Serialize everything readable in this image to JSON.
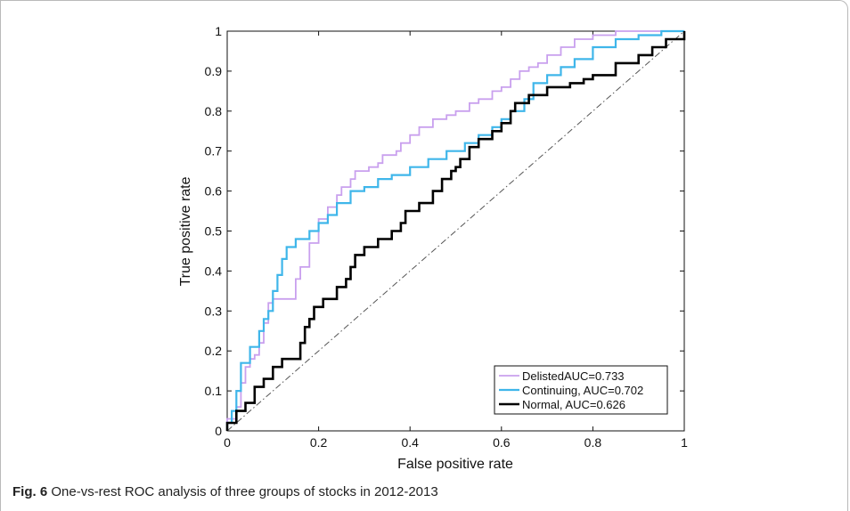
{
  "caption": {
    "label": "Fig. 6",
    "text": "One-vs-rest ROC analysis of three groups of stocks in 2012-2013"
  },
  "chart_data": {
    "type": "line",
    "xlabel": "False positive rate",
    "ylabel": "True positive rate",
    "xlim": [
      0,
      1
    ],
    "ylim": [
      0,
      1
    ],
    "xticks": [
      "0",
      "0.2",
      "0.4",
      "0.6",
      "0.8",
      "1"
    ],
    "yticks": [
      "0",
      "0.1",
      "0.2",
      "0.3",
      "0.4",
      "0.5",
      "0.6",
      "0.7",
      "0.8",
      "0.9",
      "1"
    ],
    "grid": false,
    "legend": "bottom-right",
    "diagonal": {
      "points": [
        [
          0,
          0
        ],
        [
          1,
          1
        ]
      ],
      "color": "#555555",
      "style": "dash-dot"
    },
    "series": [
      {
        "name": "DelistedAUC=0.733",
        "color": "#c9a0ee",
        "points": [
          [
            0,
            0
          ],
          [
            0,
            0.03
          ],
          [
            0.02,
            0.06
          ],
          [
            0.03,
            0.12
          ],
          [
            0.04,
            0.16
          ],
          [
            0.05,
            0.18
          ],
          [
            0.06,
            0.19
          ],
          [
            0.07,
            0.22
          ],
          [
            0.08,
            0.27
          ],
          [
            0.09,
            0.32
          ],
          [
            0.1,
            0.33
          ],
          [
            0.13,
            0.33
          ],
          [
            0.15,
            0.38
          ],
          [
            0.16,
            0.41
          ],
          [
            0.18,
            0.47
          ],
          [
            0.2,
            0.53
          ],
          [
            0.22,
            0.56
          ],
          [
            0.24,
            0.59
          ],
          [
            0.25,
            0.61
          ],
          [
            0.27,
            0.63
          ],
          [
            0.28,
            0.65
          ],
          [
            0.31,
            0.66
          ],
          [
            0.33,
            0.67
          ],
          [
            0.34,
            0.69
          ],
          [
            0.37,
            0.7
          ],
          [
            0.38,
            0.72
          ],
          [
            0.4,
            0.74
          ],
          [
            0.42,
            0.76
          ],
          [
            0.45,
            0.78
          ],
          [
            0.48,
            0.79
          ],
          [
            0.5,
            0.8
          ],
          [
            0.53,
            0.82
          ],
          [
            0.55,
            0.83
          ],
          [
            0.58,
            0.85
          ],
          [
            0.6,
            0.86
          ],
          [
            0.62,
            0.88
          ],
          [
            0.64,
            0.9
          ],
          [
            0.66,
            0.91
          ],
          [
            0.68,
            0.92
          ],
          [
            0.7,
            0.94
          ],
          [
            0.73,
            0.96
          ],
          [
            0.76,
            0.98
          ],
          [
            0.8,
            0.99
          ],
          [
            0.85,
            1.0
          ],
          [
            1,
            1
          ]
        ]
      },
      {
        "name": "Continuing, AUC=0.702",
        "color": "#3fb6ea",
        "points": [
          [
            0,
            0
          ],
          [
            0,
            0.02
          ],
          [
            0.01,
            0.05
          ],
          [
            0.02,
            0.1
          ],
          [
            0.03,
            0.17
          ],
          [
            0.05,
            0.21
          ],
          [
            0.07,
            0.25
          ],
          [
            0.08,
            0.28
          ],
          [
            0.09,
            0.3
          ],
          [
            0.1,
            0.35
          ],
          [
            0.11,
            0.39
          ],
          [
            0.12,
            0.43
          ],
          [
            0.13,
            0.46
          ],
          [
            0.15,
            0.48
          ],
          [
            0.18,
            0.5
          ],
          [
            0.2,
            0.52
          ],
          [
            0.22,
            0.54
          ],
          [
            0.24,
            0.57
          ],
          [
            0.27,
            0.6
          ],
          [
            0.3,
            0.61
          ],
          [
            0.33,
            0.63
          ],
          [
            0.36,
            0.64
          ],
          [
            0.4,
            0.66
          ],
          [
            0.44,
            0.68
          ],
          [
            0.48,
            0.7
          ],
          [
            0.52,
            0.72
          ],
          [
            0.55,
            0.74
          ],
          [
            0.58,
            0.76
          ],
          [
            0.6,
            0.78
          ],
          [
            0.62,
            0.8
          ],
          [
            0.65,
            0.83
          ],
          [
            0.67,
            0.87
          ],
          [
            0.7,
            0.89
          ],
          [
            0.73,
            0.91
          ],
          [
            0.76,
            0.93
          ],
          [
            0.8,
            0.96
          ],
          [
            0.85,
            0.98
          ],
          [
            0.9,
            0.99
          ],
          [
            0.95,
            1.0
          ],
          [
            1,
            1
          ]
        ]
      },
      {
        "name": "Normal, AUC=0.626",
        "color": "#000000",
        "points": [
          [
            0,
            0
          ],
          [
            0,
            0.02
          ],
          [
            0.02,
            0.05
          ],
          [
            0.04,
            0.07
          ],
          [
            0.06,
            0.11
          ],
          [
            0.08,
            0.13
          ],
          [
            0.1,
            0.16
          ],
          [
            0.12,
            0.18
          ],
          [
            0.14,
            0.18
          ],
          [
            0.16,
            0.22
          ],
          [
            0.17,
            0.26
          ],
          [
            0.18,
            0.28
          ],
          [
            0.19,
            0.31
          ],
          [
            0.21,
            0.33
          ],
          [
            0.24,
            0.36
          ],
          [
            0.26,
            0.38
          ],
          [
            0.27,
            0.41
          ],
          [
            0.28,
            0.44
          ],
          [
            0.3,
            0.46
          ],
          [
            0.33,
            0.48
          ],
          [
            0.36,
            0.5
          ],
          [
            0.38,
            0.52
          ],
          [
            0.39,
            0.55
          ],
          [
            0.42,
            0.57
          ],
          [
            0.45,
            0.6
          ],
          [
            0.47,
            0.63
          ],
          [
            0.49,
            0.65
          ],
          [
            0.5,
            0.66
          ],
          [
            0.51,
            0.68
          ],
          [
            0.53,
            0.71
          ],
          [
            0.55,
            0.73
          ],
          [
            0.58,
            0.75
          ],
          [
            0.6,
            0.77
          ],
          [
            0.62,
            0.8
          ],
          [
            0.63,
            0.82
          ],
          [
            0.66,
            0.84
          ],
          [
            0.7,
            0.86
          ],
          [
            0.75,
            0.87
          ],
          [
            0.78,
            0.88
          ],
          [
            0.8,
            0.89
          ],
          [
            0.85,
            0.92
          ],
          [
            0.9,
            0.94
          ],
          [
            0.93,
            0.96
          ],
          [
            0.96,
            0.98
          ],
          [
            1,
            1
          ]
        ]
      }
    ]
  }
}
